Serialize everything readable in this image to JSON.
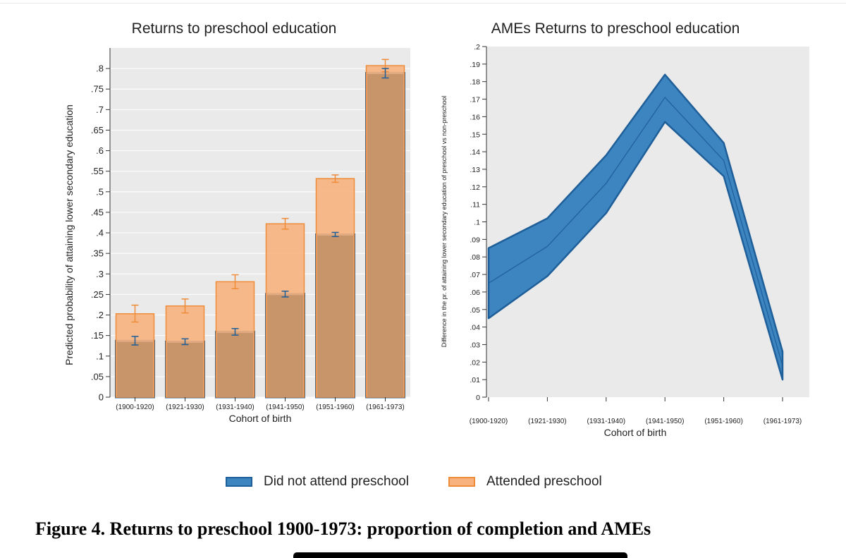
{
  "caption": "Figure 4. Returns to preschool 1900-1973: proportion of completion and AMEs",
  "legend": [
    {
      "label": "Did not attend preschool",
      "fill": "#3d85c0",
      "stroke": "#1f5f99"
    },
    {
      "label": "Attended preschool",
      "fill": "#f7b27d",
      "stroke": "#ee8c3a"
    }
  ],
  "colors": {
    "blue_fill": "#3d85c0",
    "blue_dark": "#1f5f99",
    "orange_fill": "#f7b27d",
    "orange_dark": "#ee8c3a",
    "overlap_fill": "#c8946a",
    "plot_bg": "#eaeaea"
  },
  "chart_data": [
    {
      "type": "bar",
      "title": "Returns to preschool education",
      "xlabel": "Cohort of birth",
      "ylabel": "Predicted probability of attaining lower secondary education",
      "categories": [
        "(1900-1920)",
        "(1921-1930)",
        "(1931-1940)",
        "(1941-1950)",
        "(1951-1960)",
        "(1961-1973)"
      ],
      "ylim": [
        0,
        0.85
      ],
      "yticks": [
        0,
        0.05,
        0.1,
        0.15,
        0.2,
        0.25,
        0.3,
        0.35,
        0.4,
        0.45,
        0.5,
        0.55,
        0.6,
        0.65,
        0.7,
        0.75,
        0.8
      ],
      "ytick_labels": [
        "0",
        ".05",
        ".1",
        ".15",
        ".2",
        ".25",
        ".3",
        ".35",
        ".4",
        ".45",
        ".5",
        ".55",
        ".6",
        ".65",
        ".7",
        ".75",
        ".8"
      ],
      "grid": true,
      "series": [
        {
          "name": "Did not attend preschool",
          "values": [
            0.137,
            0.135,
            0.159,
            0.251,
            0.396,
            0.789
          ],
          "ci_low": [
            0.127,
            0.128,
            0.151,
            0.244,
            0.391,
            0.777
          ],
          "ci_high": [
            0.148,
            0.142,
            0.167,
            0.258,
            0.401,
            0.8
          ]
        },
        {
          "name": "Attended preschool",
          "values": [
            0.203,
            0.222,
            0.281,
            0.422,
            0.532,
            0.807
          ],
          "ci_low": [
            0.183,
            0.205,
            0.264,
            0.409,
            0.523,
            0.792
          ],
          "ci_high": [
            0.224,
            0.239,
            0.298,
            0.435,
            0.541,
            0.822
          ]
        }
      ]
    },
    {
      "type": "area",
      "title": "AMEs Returns to preschool education",
      "xlabel": "Cohort of birth",
      "ylabel": "Difference in the pr. of attaining lower secondary education of preschool vs non-preschool",
      "categories": [
        "(1900-1920)",
        "(1921-1930)",
        "(1931-1940)",
        "(1941-1950)",
        "(1951-1960)",
        "(1961-1973)"
      ],
      "ylim": [
        0,
        0.2
      ],
      "yticks": [
        0,
        0.01,
        0.02,
        0.03,
        0.04,
        0.05,
        0.06,
        0.07,
        0.08,
        0.09,
        0.1,
        0.11,
        0.12,
        0.13,
        0.14,
        0.15,
        0.16,
        0.17,
        0.18,
        0.19,
        0.2
      ],
      "ytick_labels": [
        "0",
        ".01",
        ".02",
        ".03",
        ".04",
        ".05",
        ".06",
        ".07",
        ".08",
        ".09",
        ".1",
        ".11",
        ".12",
        ".13",
        ".14",
        ".15",
        ".16",
        ".17",
        ".18",
        ".19",
        ".2"
      ],
      "grid": false,
      "series": [
        {
          "values": [
            0.065,
            0.086,
            0.122,
            0.171,
            0.135,
            0.018
          ],
          "ci_low": [
            0.045,
            0.069,
            0.105,
            0.157,
            0.126,
            0.01
          ],
          "ci_high": [
            0.085,
            0.102,
            0.138,
            0.184,
            0.145,
            0.026
          ]
        }
      ]
    }
  ]
}
